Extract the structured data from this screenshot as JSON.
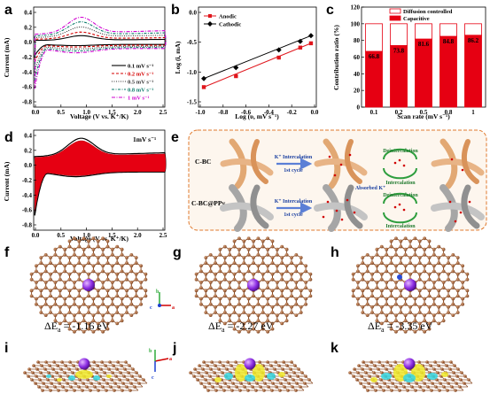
{
  "panels": {
    "a": {
      "label": "a",
      "xlabel": "Voltage (V vs. K⁺/K)",
      "ylabel": "Current (mA)",
      "xticks": [
        "0.0",
        "0.5",
        "1.0",
        "1.5",
        "2.0",
        "2.5"
      ],
      "yticks": [
        "0.4",
        "0.2",
        "0.0",
        "-0.2",
        "-0.4",
        "-0.6",
        "-0.8"
      ],
      "legend": [
        {
          "name": "0.1 mV s⁻¹",
          "color": "#000000",
          "dash": ""
        },
        {
          "name": "0.2 mV s⁻¹",
          "color": "#d40000",
          "dash": "3,2"
        },
        {
          "name": "0.5 mV s⁻¹",
          "color": "#333333",
          "dash": "1,1.5"
        },
        {
          "name": "0.8 mV s⁻¹",
          "color": "#0a7a6a",
          "dash": "3,1.5,1,1.5"
        },
        {
          "name": "1 mV s⁻¹",
          "color": "#d000d0",
          "dash": "4,1.5,1,1.5"
        }
      ]
    },
    "b": {
      "label": "b",
      "xlabel": "Log (υ, mV s⁻¹)",
      "ylabel": "Log (i, mA)",
      "xticks": [
        "-1.0",
        "-0.8",
        "-0.6",
        "-0.4",
        "-0.2",
        "0.0"
      ],
      "yticks": [
        "0.0",
        "-0.5",
        "-1.0",
        "-1.5"
      ],
      "legend": [
        {
          "name": "Anodic",
          "color": "#e0161c"
        },
        {
          "name": "Cathodic",
          "color": "#000000"
        }
      ]
    },
    "c": {
      "label": "c",
      "xlabel": "Scan rate (mV s⁻¹)",
      "ylabel": "Contribution ratio (%)",
      "yticks": [
        "0",
        "20",
        "40",
        "60",
        "80",
        "100",
        "120"
      ],
      "legend": [
        {
          "name": "Diffusion controlled",
          "color": "#ffffff"
        },
        {
          "name": "Capacitive",
          "color": "#e60012"
        }
      ]
    },
    "d": {
      "label": "d",
      "xlabel": "Voltage (V vs. K⁺/K)",
      "ylabel": "Current (mA)",
      "xticks": [
        "0.0",
        "0.5",
        "1.0",
        "1.5",
        "2.0",
        "2.5"
      ],
      "yticks": [
        "0.4",
        "0.2",
        "0.0",
        "-0.2",
        "-0.4",
        "-0.6",
        "-0.8"
      ],
      "annotation": "1mV s⁻¹"
    },
    "e": {
      "label": "e",
      "row1": "C-BC",
      "row2": "C-BC@PPy",
      "arrow_label": "K⁺ Intercalation",
      "cycle_label": "1st cycle",
      "deintercalation": "Deintercalation",
      "intercalation": "Intercalation",
      "absorbed": "Absorbed K⁺"
    },
    "f": {
      "label": "f",
      "energy_prefix": "ΔE",
      "energy_sub": "a",
      "energy_value": " = -1.16 eV"
    },
    "g": {
      "label": "g",
      "energy_prefix": "ΔE",
      "energy_sub": "a",
      "energy_value": " = -2.27 eV"
    },
    "h": {
      "label": "h",
      "energy_prefix": "ΔE",
      "energy_sub": "a",
      "energy_value": " = -3.35 eV"
    },
    "i": {
      "label": "i"
    },
    "j": {
      "label": "j"
    },
    "k": {
      "label": "k"
    },
    "axes_f": {
      "b": "b",
      "c": "c",
      "a": "a"
    },
    "axes_i": {
      "a": "a",
      "b": "b",
      "c": "c"
    }
  },
  "chart_data": [
    {
      "type": "line",
      "panel": "a",
      "xlabel": "Voltage (V vs. K⁺/K)",
      "ylabel": "Current (mA)",
      "xlim": [
        0,
        2.5
      ],
      "ylim": [
        -0.9,
        0.5
      ],
      "series": [
        {
          "name": "0.1 mV s⁻¹",
          "scale": 0.28
        },
        {
          "name": "0.2 mV s⁻¹",
          "scale": 0.42
        },
        {
          "name": "0.5 mV s⁻¹",
          "scale": 0.62
        },
        {
          "name": "0.8 mV s⁻¹",
          "scale": 0.82
        },
        {
          "name": "1 mV s⁻¹",
          "scale": 1.0
        }
      ]
    },
    {
      "type": "scatter",
      "panel": "b",
      "xlabel": "Log (υ, mV s⁻¹)",
      "ylabel": "Log (i, mA)",
      "xlim": [
        -1.05,
        0.05
      ],
      "ylim": [
        -1.8,
        0.3
      ],
      "x": [
        -1.0,
        -0.7,
        -0.3,
        -0.1,
        0.0
      ],
      "series": [
        {
          "name": "Anodic",
          "values": [
            -1.38,
            -1.15,
            -0.76,
            -0.55,
            -0.46
          ]
        },
        {
          "name": "Cathodic",
          "values": [
            -1.2,
            -0.97,
            -0.6,
            -0.42,
            -0.3
          ]
        }
      ]
    },
    {
      "type": "bar",
      "panel": "c",
      "ylabel": "Contribution ratio (%)",
      "xlabel": "Scan rate (mV s⁻¹)",
      "categories": [
        "0.1",
        "0.2",
        "0.5",
        "0.8",
        "1"
      ],
      "values": [
        66.8,
        73.8,
        81.6,
        84.8,
        86.2
      ],
      "ylim": [
        0,
        120
      ],
      "series": [
        {
          "name": "Capacitive",
          "values": [
            66.8,
            73.8,
            81.6,
            84.8,
            86.2
          ]
        },
        {
          "name": "Diffusion controlled",
          "values": [
            33.2,
            26.2,
            18.4,
            15.2,
            13.8
          ]
        }
      ]
    },
    {
      "type": "area",
      "panel": "d",
      "xlabel": "Voltage (V vs. K⁺/K)",
      "ylabel": "Current (mA)",
      "xlim": [
        0,
        2.5
      ],
      "ylim": [
        -0.9,
        0.5
      ],
      "annotation": "1mV s⁻¹"
    }
  ]
}
